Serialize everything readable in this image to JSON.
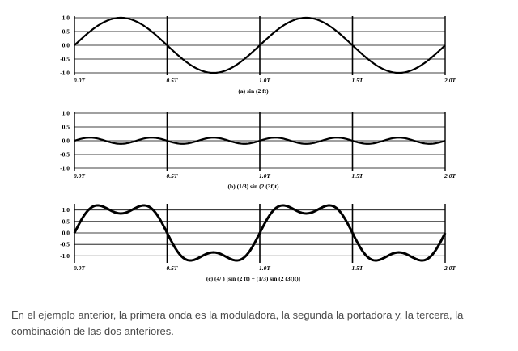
{
  "chart_data": [
    {
      "type": "line",
      "caption": "(a) sin (2  ft)",
      "yticks": [
        "1.0",
        "0.5",
        "0.0",
        "-0.5",
        "-1.0"
      ],
      "xticks": [
        "0.0T",
        "0.5T",
        "1.0T",
        "1.5T",
        "2.0T"
      ],
      "xlim": [
        0,
        2
      ],
      "ylim": [
        -1,
        1
      ],
      "series": [
        {
          "amplitude": 1,
          "harmonics": [
            1
          ]
        }
      ]
    },
    {
      "type": "line",
      "caption": "(b) (1/3) sin (2  (3f)t)",
      "yticks": [
        "1.0",
        "0.5",
        "0.0",
        "-0.5",
        "-1.0"
      ],
      "xticks": [
        "0.0T",
        "0.5T",
        "1.0T",
        "1.5T",
        "2.0T"
      ],
      "xlim": [
        0,
        2
      ],
      "ylim": [
        -1,
        1
      ],
      "series": [
        {
          "amplitude": 0.333,
          "harmonics": [
            3
          ]
        }
      ]
    },
    {
      "type": "line",
      "caption": "(c)  (4/  ) [sin (2  ft) + (1/3) sin (2  (3f)t)]",
      "yticks": [
        "1.0",
        "0.5",
        "0.0",
        "-0.5",
        "-1.0"
      ],
      "xticks": [
        "0.0T",
        "0.5T",
        "1.0T",
        "1.5T",
        "2.0T"
      ],
      "xlim": [
        0,
        2
      ],
      "ylim": [
        -1.2,
        1.2
      ],
      "series": [
        {
          "amplitude": 1.273,
          "harmonics": [
            1,
            3
          ]
        }
      ]
    }
  ],
  "text": {
    "paragraph": "En el ejemplo anterior, la primera onda es la moduladora, la segunda la portadora y, la tercera, la combinación de las dos anteriores."
  }
}
